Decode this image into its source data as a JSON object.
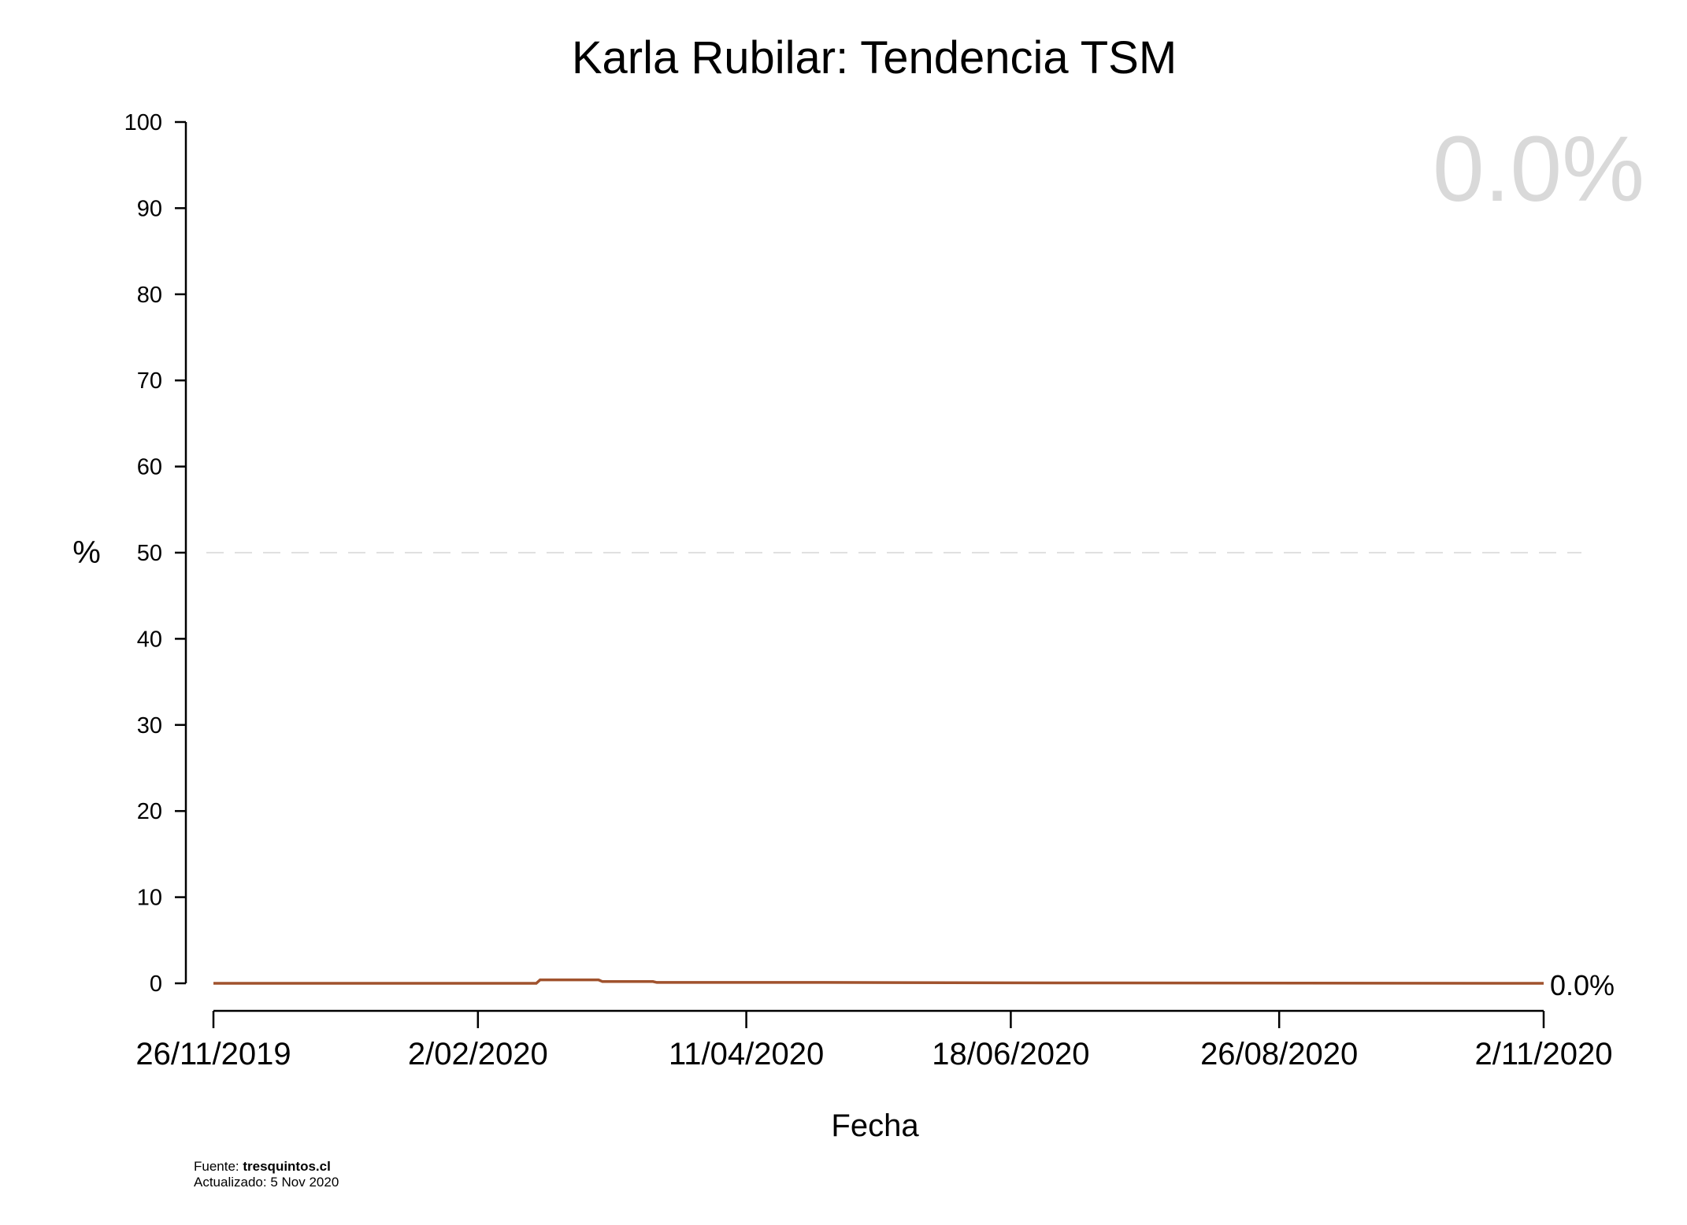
{
  "chart_data": {
    "type": "line",
    "title": "Karla Rubilar: Tendencia TSM",
    "xlabel": "Fecha",
    "ylabel": "%",
    "ylim": [
      0,
      100
    ],
    "yticks": [
      0,
      10,
      20,
      30,
      40,
      50,
      60,
      70,
      80,
      90,
      100
    ],
    "x_tick_labels": [
      "26/11/2019",
      "2/02/2020",
      "11/04/2020",
      "18/06/2020",
      "26/08/2020",
      "2/11/2020"
    ],
    "x_tick_dates": [
      "2019-11-26",
      "2020-02-02",
      "2020-04-11",
      "2020-06-18",
      "2020-08-26",
      "2020-11-02"
    ],
    "reference_line": {
      "y": 50,
      "style": "dashed",
      "color": "#e0e0e0"
    },
    "series": [
      {
        "color": "#a0522d",
        "x": [
          "2019-11-26",
          "2020-02-17",
          "2020-02-18",
          "2020-03-04",
          "2020-03-05",
          "2020-03-18",
          "2020-03-19",
          "2020-05-01",
          "2020-07-01",
          "2020-09-01",
          "2020-11-02"
        ],
        "y": [
          0.0,
          0.0,
          0.4,
          0.4,
          0.2,
          0.2,
          0.1,
          0.1,
          0.05,
          0.02,
          0.0
        ]
      }
    ],
    "current_value_label": "0.0%",
    "end_label": "0.0%",
    "grid": false
  },
  "footer": {
    "source_prefix": "Fuente: ",
    "source_site": "tresquintos.cl",
    "updated": "Actualizado: 5 Nov 2020"
  }
}
